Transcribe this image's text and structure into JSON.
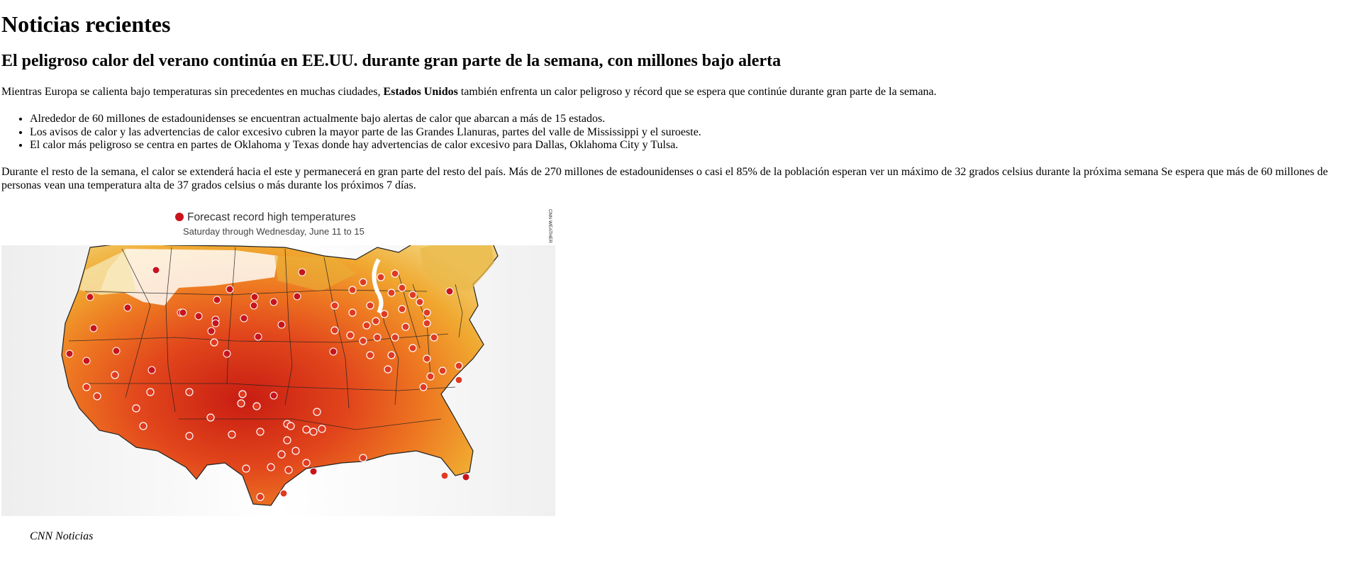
{
  "page": {
    "heading": "Noticias recientes"
  },
  "article": {
    "title": "El peligroso calor del verano continúa en EE.UU. durante gran parte de la semana, con millones bajo alerta",
    "intro_before": "Mientras Europa se calienta bajo temperaturas sin precedentes en muchas ciudades, ",
    "intro_bold": "Estados Unidos",
    "intro_after": " también enfrenta un calor peligroso y récord que se espera que continúe durante gran parte de la semana.",
    "bullets": [
      "Alrededor de 60 millones de estadounidenses se encuentran actualmente bajo alertas de calor que abarcan a más de 15 estados.",
      "Los avisos de calor y las advertencias de calor excesivo cubren la mayor parte de las Grandes Llanuras, partes del valle de Mississippi y el suroeste.",
      "El calor más peligroso se centra en partes de Oklahoma y Texas donde hay advertencias de calor excesivo para Dallas, Oklahoma City y Tulsa."
    ],
    "body": "Durante el resto de la semana, el calor se extenderá hacia el este y permanecerá en gran parte del resto del país. Más de 270 millones de estadounidenses o casi el 85% de la población esperan ver un máximo de 32 grados celsius durante la próxima semana Se espera que más de 60 millones de personas vean una temperatura alta de 37 grados celsius o más durante los próximos 7 días.",
    "figure": {
      "legend_label": "Forecast record high temperatures",
      "subtitle": "Saturday through Wednesday, June 11 to 15",
      "credit": "CNN WEATHER",
      "caption": "CNN Noticias",
      "colors": {
        "record_dot": "#c8141c",
        "hot_dark": "#b01010",
        "hot": "#e0401c",
        "warm": "#ee7a22",
        "mild": "#f0a830",
        "cool": "#e8c060"
      }
    }
  }
}
